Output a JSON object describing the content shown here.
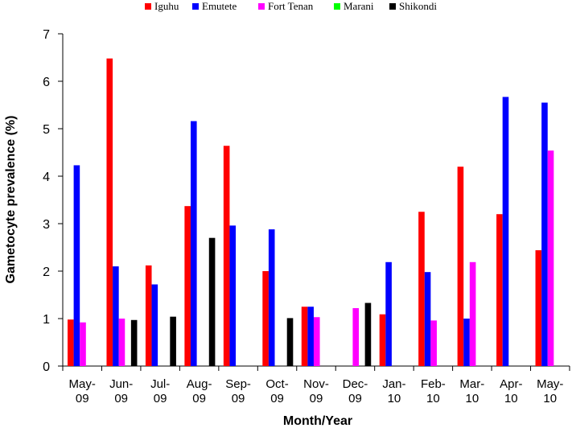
{
  "chart_data": {
    "type": "bar",
    "title": "",
    "xlabel": "Month/Year",
    "ylabel": "Gametocyte prevalence (%)",
    "ylim": [
      0,
      7
    ],
    "yticks": [
      "0",
      "1",
      "2",
      "3",
      "4",
      "5",
      "6",
      "7"
    ],
    "categories": [
      [
        "May-",
        "09"
      ],
      [
        "Jun-",
        "09"
      ],
      [
        "Jul-",
        "09"
      ],
      [
        "Aug-",
        "09"
      ],
      [
        "Sep-",
        "09"
      ],
      [
        "Oct-",
        "09"
      ],
      [
        "Nov-",
        "09"
      ],
      [
        "Dec-",
        "09"
      ],
      [
        "Jan-",
        "10"
      ],
      [
        "Feb-",
        "10"
      ],
      [
        "Mar-",
        "10"
      ],
      [
        "Apr-",
        "10"
      ],
      [
        "May-",
        "10"
      ]
    ],
    "legend_position": "top",
    "grid": false,
    "series": [
      {
        "name": "Iguhu",
        "color": "#ff0000",
        "values": [
          0.98,
          6.48,
          2.12,
          3.37,
          4.64,
          2.0,
          1.25,
          null,
          1.09,
          3.25,
          4.2,
          3.2,
          2.44
        ]
      },
      {
        "name": "Emutete",
        "color": "#0000ff",
        "values": [
          4.23,
          2.1,
          1.72,
          5.16,
          2.96,
          2.88,
          1.25,
          null,
          2.19,
          1.98,
          1.0,
          5.67,
          5.55
        ]
      },
      {
        "name": "Fort Tenan",
        "color": "#ff00ff",
        "values": [
          0.92,
          1.0,
          null,
          null,
          null,
          null,
          1.03,
          1.22,
          null,
          0.96,
          2.19,
          null,
          4.54
        ]
      },
      {
        "name": "Marani",
        "color": "#00ff00",
        "values": [
          null,
          null,
          null,
          null,
          null,
          null,
          null,
          null,
          null,
          null,
          null,
          null,
          null
        ]
      },
      {
        "name": "Shikondi",
        "color": "#000000",
        "values": [
          null,
          0.97,
          1.04,
          2.7,
          null,
          1.01,
          null,
          1.33,
          null,
          null,
          null,
          null,
          null
        ]
      }
    ]
  }
}
